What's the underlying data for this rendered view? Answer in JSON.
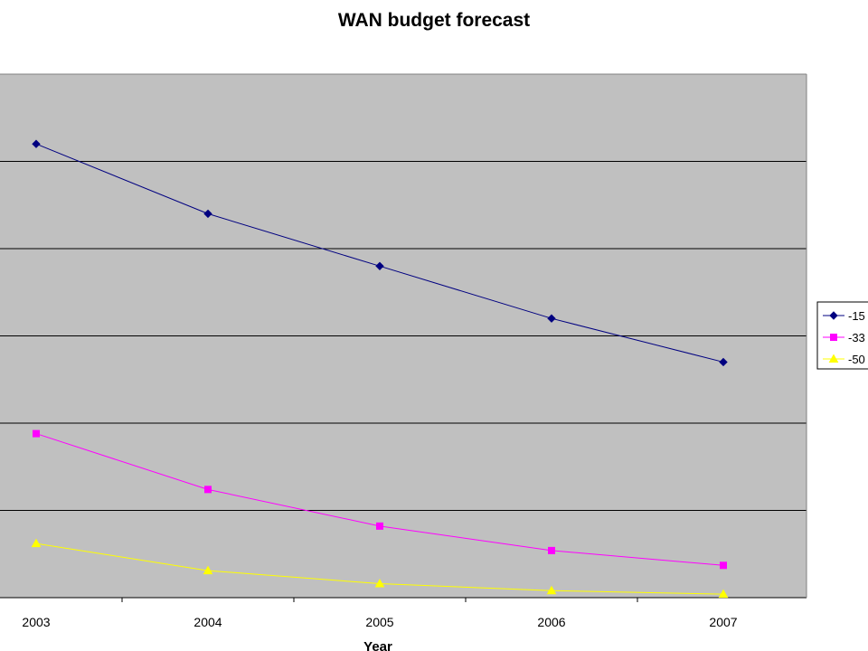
{
  "chart_data": {
    "type": "line",
    "title": "WAN budget forecast",
    "xlabel": "Year",
    "ylabel": "",
    "categories": [
      "2003",
      "2004",
      "2005",
      "2006",
      "2007"
    ],
    "ylim": [
      0,
      6
    ],
    "grid": true,
    "legend_position": "right",
    "series": [
      {
        "name": "-15",
        "values": [
          5.2,
          4.4,
          3.8,
          3.2,
          2.7
        ],
        "color": "#000080",
        "marker": "diamond"
      },
      {
        "name": "-33",
        "values": [
          1.88,
          1.24,
          0.82,
          0.54,
          0.37
        ],
        "color": "#ff00ff",
        "marker": "square"
      },
      {
        "name": "-50",
        "values": [
          0.62,
          0.31,
          0.16,
          0.08,
          0.04
        ],
        "color": "#ffff00",
        "marker": "triangle"
      }
    ]
  }
}
